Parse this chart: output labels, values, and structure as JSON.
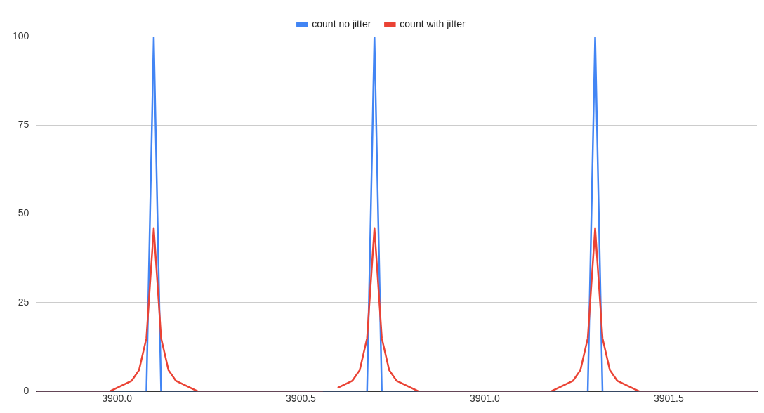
{
  "chart_data": {
    "type": "line",
    "series": [
      {
        "name": "count no jitter",
        "color": "#4285f4",
        "x": [
          3899.78,
          3900.08,
          3900.1,
          3900.12,
          3900.68,
          3900.7,
          3900.72,
          3901.28,
          3901.3,
          3901.32,
          3901.74
        ],
        "values": [
          0,
          0,
          100,
          0,
          0,
          100,
          0,
          0,
          100,
          0,
          0
        ]
      },
      {
        "name": "count with jitter",
        "color": "#ea4335",
        "x": [
          3899.78,
          3899.98,
          3900.04,
          3900.06,
          3900.08,
          3900.1,
          3900.12,
          3900.14,
          3900.16,
          3900.22,
          3900.56,
          3900.58,
          3900.6,
          3900.64,
          3900.66,
          3900.68,
          3900.7,
          3900.72,
          3900.74,
          3900.76,
          3900.82,
          3901.18,
          3901.24,
          3901.26,
          3901.28,
          3901.3,
          3901.32,
          3901.34,
          3901.36,
          3901.42,
          3901.74
        ],
        "values": [
          0,
          0,
          3,
          6,
          15,
          46,
          15,
          6,
          3,
          0,
          0,
          null,
          1,
          3,
          6,
          15,
          46,
          15,
          6,
          3,
          0,
          0,
          3,
          6,
          15,
          46,
          15,
          6,
          3,
          0,
          0
        ]
      }
    ],
    "xlim": [
      3899.78,
      3901.74
    ],
    "xticks": [
      {
        "value": 3900,
        "label": "3900.0"
      },
      {
        "value": 3900.5,
        "label": "3900.5"
      },
      {
        "value": 3901,
        "label": "3901.0"
      },
      {
        "value": 3901.5,
        "label": "3901.5"
      }
    ],
    "ylim": [
      0,
      100
    ],
    "yticks": [
      0,
      25,
      50,
      75,
      100
    ],
    "grid": true,
    "legend": "top",
    "marker": "none",
    "line_style": "solid"
  }
}
